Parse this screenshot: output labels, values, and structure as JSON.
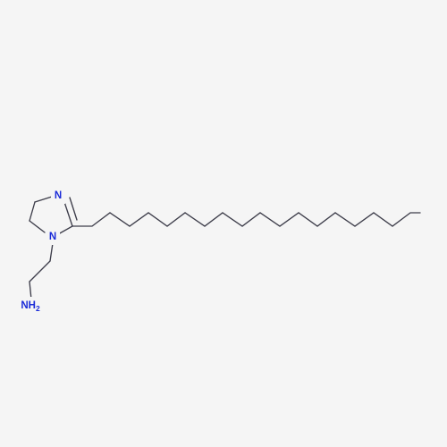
{
  "molecule": {
    "atoms": [
      {
        "id": "N_ring_top",
        "label": "N",
        "color": "#1a2bd8"
      },
      {
        "id": "N_ring_sub",
        "label": "N",
        "color": "#1a2bd8"
      },
      {
        "id": "N_amine",
        "label": "NH",
        "subscript": "2",
        "color": "#1a2bd8"
      }
    ],
    "bond_color": "#3d3d4a",
    "background": "#f5f5f5"
  }
}
